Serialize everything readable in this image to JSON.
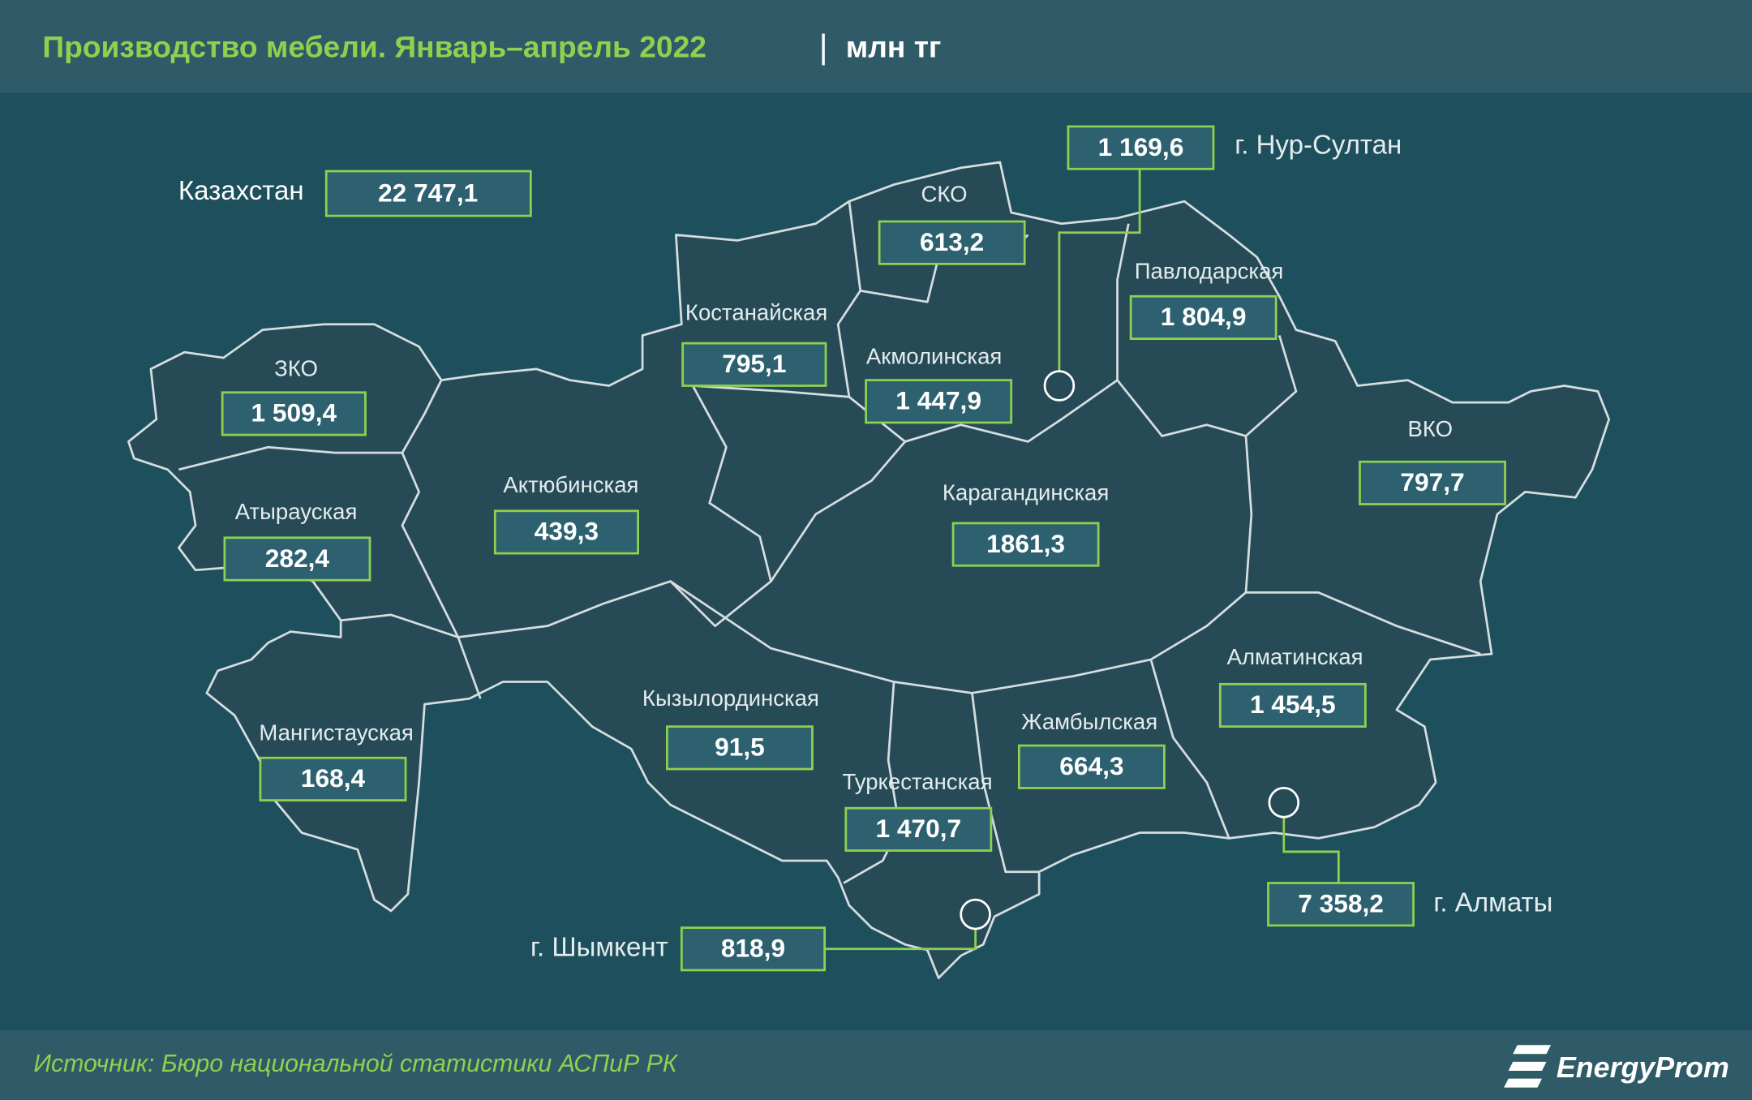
{
  "header": {
    "title": "Производство мебели. Январь–апрель 2022",
    "separator": "|",
    "unit": "млн тг"
  },
  "total": {
    "label": "Казахстан",
    "value": "22 747,1"
  },
  "regions": [
    {
      "name": "ЗКО",
      "value": "1 509,4"
    },
    {
      "name": "Атырауская",
      "value": "282,4"
    },
    {
      "name": "Актюбинская",
      "value": "439,3"
    },
    {
      "name": "Мангистауская",
      "value": "168,4"
    },
    {
      "name": "Костанайская",
      "value": "795,1"
    },
    {
      "name": "СКО",
      "value": "613,2"
    },
    {
      "name": "Акмолинская",
      "value": "1 447,9"
    },
    {
      "name": "Павлодарская",
      "value": "1 804,9"
    },
    {
      "name": "Карагандинская",
      "value": "1861,3"
    },
    {
      "name": "ВКО",
      "value": "797,7"
    },
    {
      "name": "Кызылординская",
      "value": "91,5"
    },
    {
      "name": "Алматинская",
      "value": "1 454,5"
    },
    {
      "name": "Жамбылская",
      "value": "664,3"
    },
    {
      "name": "Туркестанская",
      "value": "1 470,7"
    }
  ],
  "cities": [
    {
      "name": "г. Нур-Султан",
      "value": "1 169,6"
    },
    {
      "name": "г. Алматы",
      "value": "7 358,2"
    },
    {
      "name": "г. Шымкент",
      "value": "818,9"
    }
  ],
  "footer": {
    "source": "Источник: Бюро национальной статистики АСПиР РК",
    "logo": "EnergyProm"
  }
}
